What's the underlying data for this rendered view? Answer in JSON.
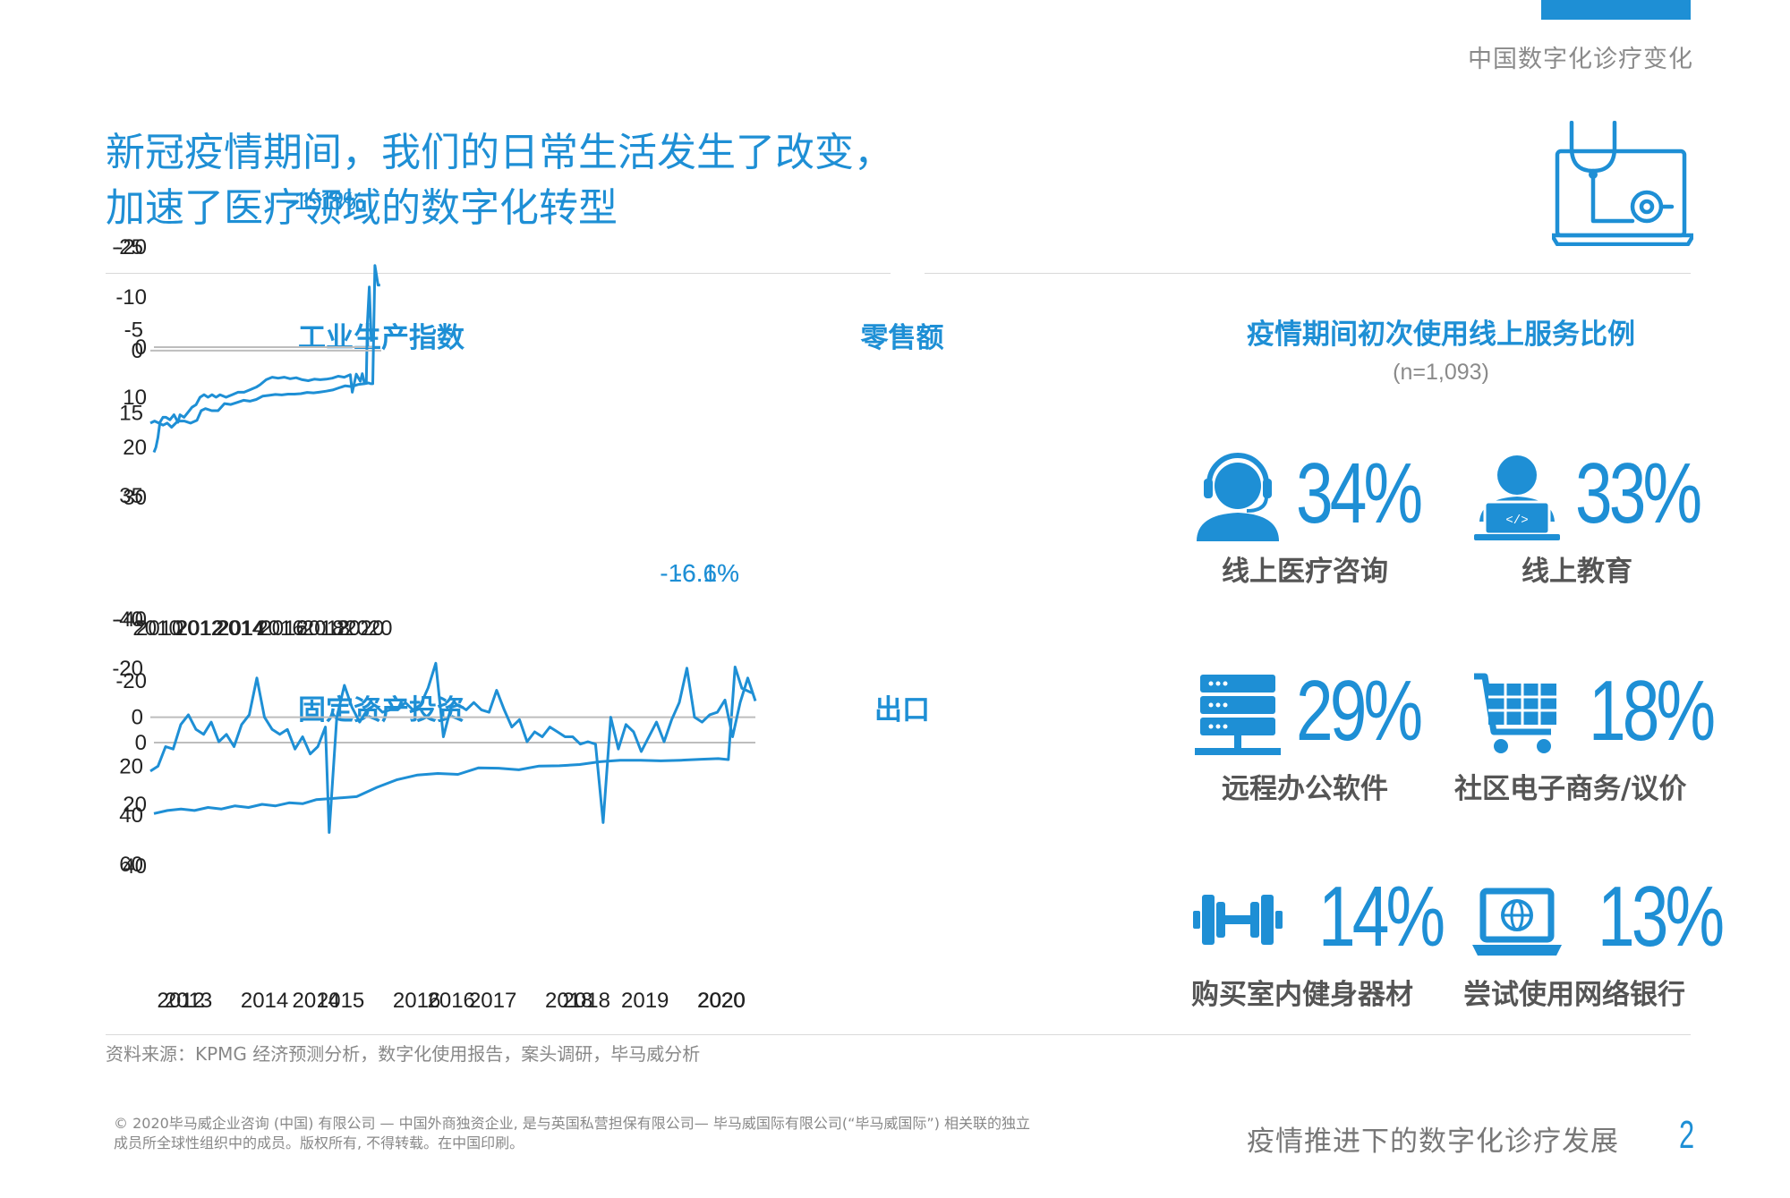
{
  "header": {
    "section_label": "中国数字化诊疗变化"
  },
  "title": {
    "line1": "新冠疫情期间，我们的日常生活发生了改变，",
    "line2": "加速了医疗领域的数字化转型"
  },
  "colors": {
    "accent": "#1e8fd5",
    "text": "#444444",
    "muted": "#888888",
    "zero_line": "#bdbdbd"
  },
  "chart_data": [
    {
      "type": "line",
      "title": "工业生产指数",
      "ylim": [
        -20,
        30
      ],
      "y_ticks": [
        "30",
        "20",
        "10",
        "0",
        "-10",
        "-20"
      ],
      "y_tick_values": [
        30,
        20,
        10,
        0,
        -10,
        -20
      ],
      "x_ticks": [
        "2010",
        "2012",
        "2014",
        "2016",
        "2018",
        "2020"
      ],
      "x_tick_values": [
        2010,
        2012,
        2014,
        2016,
        2018,
        2020
      ],
      "xlim": [
        2009.7,
        2020.6
      ],
      "series": [
        {
          "name": "工业生产指数",
          "x": [
            2009.7,
            2009.8,
            2009.9,
            2010.0,
            2010.15,
            2010.3,
            2010.5,
            2010.7,
            2010.9,
            2011.0,
            2011.2,
            2011.4,
            2011.6,
            2011.8,
            2012.0,
            2012.2,
            2012.4,
            2012.6,
            2012.8,
            2013.0,
            2013.3,
            2013.6,
            2013.9,
            2014.2,
            2014.5,
            2014.8,
            2015.0,
            2015.3,
            2015.6,
            2015.9,
            2016.2,
            2016.5,
            2016.8,
            2017.1,
            2017.4,
            2017.7,
            2018.0,
            2018.3,
            2018.6,
            2018.9,
            2019.2,
            2019.5,
            2019.6,
            2019.8,
            2020.0,
            2020.1,
            2020.2,
            2020.3,
            2020.35,
            2020.45,
            2020.55
          ],
          "y": [
            21,
            20,
            18,
            15,
            14,
            14,
            14.5,
            13.5,
            15,
            13.5,
            14,
            13,
            12,
            11.5,
            10,
            9.5,
            10,
            9.5,
            10,
            9.5,
            10,
            9.5,
            9,
            9,
            8.5,
            8,
            7.5,
            6.5,
            6,
            6.2,
            6,
            6.3,
            6.1,
            6.5,
            6.7,
            6.4,
            6.5,
            6.4,
            6.2,
            5.8,
            6,
            5.5,
            9,
            5.4,
            6.8,
            5.3,
            7,
            6.9,
            -4.5,
            -12,
            -1.1
          ]
        }
      ],
      "callout": "-1.1%"
    },
    {
      "type": "line",
      "title": "零售额",
      "ylim": [
        -25,
        35
      ],
      "y_ticks": [
        "35",
        "15",
        "0",
        "-5",
        "-25"
      ],
      "y_tick_values": [
        35,
        15,
        0,
        -5,
        -25
      ],
      "x_ticks": [
        "2010",
        "2012",
        "2014",
        "2016",
        "2018",
        "2020"
      ],
      "x_tick_values": [
        2010,
        2012,
        2014,
        2016,
        2018,
        2020
      ],
      "xlim": [
        2009.7,
        2020.6
      ],
      "series": [
        {
          "name": "零售额",
          "x": [
            2009.7,
            2009.9,
            2010.1,
            2010.3,
            2010.5,
            2010.7,
            2011.0,
            2011.3,
            2011.6,
            2011.9,
            2012.1,
            2012.3,
            2012.6,
            2012.9,
            2013.2,
            2013.5,
            2013.8,
            2014.1,
            2014.4,
            2014.7,
            2015.0,
            2015.3,
            2015.6,
            2015.9,
            2016.2,
            2016.5,
            2016.8,
            2017.1,
            2017.4,
            2017.7,
            2018.0,
            2018.3,
            2018.6,
            2018.9,
            2019.2,
            2019.5,
            2019.8,
            2020.0,
            2020.1,
            2020.2,
            2020.3,
            2020.45,
            2020.55
          ],
          "y": [
            17.5,
            17,
            17.5,
            18,
            17.5,
            18.5,
            17,
            17,
            17.5,
            16.8,
            14.5,
            14,
            14.5,
            14.5,
            12.8,
            13,
            12.5,
            12,
            12.2,
            11.8,
            11,
            10.8,
            10.6,
            10.7,
            10.5,
            10.5,
            10.4,
            10.1,
            10.2,
            10.0,
            9.8,
            9.5,
            9.0,
            8.5,
            8.7,
            8.2,
            8.0,
            7.8,
            8.0,
            8.0,
            -20.5,
            -15.8,
            -15.8
          ]
        }
      ],
      "callout": "-15.8%"
    },
    {
      "type": "line",
      "title": "固定资产投资",
      "ylim": [
        -40,
        40
      ],
      "y_ticks": [
        "40",
        "20",
        "0",
        "-20",
        "-40"
      ],
      "y_tick_values": [
        40,
        20,
        0,
        -20,
        -40
      ],
      "x_ticks": [
        "2012",
        "2014",
        "2016",
        "2018",
        "2020"
      ],
      "x_tick_values": [
        2012,
        2014,
        2016,
        2018,
        2020
      ],
      "xlim": [
        2011.6,
        2020.5
      ],
      "series": [
        {
          "name": "固定资产投资",
          "x": [
            2011.6,
            2011.8,
            2012.0,
            2012.2,
            2012.4,
            2012.6,
            2012.8,
            2013.0,
            2013.2,
            2013.4,
            2013.6,
            2013.8,
            2014.0,
            2014.3,
            2014.6,
            2014.9,
            2015.2,
            2015.5,
            2015.8,
            2016.1,
            2016.4,
            2016.7,
            2017.0,
            2017.3,
            2017.6,
            2017.9,
            2018.2,
            2018.5,
            2018.8,
            2019.1,
            2019.4,
            2019.7,
            2019.95,
            2020.1,
            2020.2,
            2020.3,
            2020.45
          ],
          "y": [
            23,
            22,
            21.5,
            22,
            21,
            21.5,
            20.5,
            21,
            20,
            20.5,
            19.5,
            19.8,
            18.5,
            18,
            17.5,
            14.5,
            12,
            10.5,
            10,
            10.3,
            8.2,
            8.3,
            8.8,
            7.6,
            7.5,
            7.1,
            6.2,
            5.7,
            5.7,
            5.9,
            5.7,
            5.4,
            5.2,
            5.5,
            -24.5,
            -17.6,
            -16.1
          ]
        }
      ],
      "callout": "-16.1%"
    },
    {
      "type": "line",
      "title": "出口",
      "ylim": [
        -40,
        60
      ],
      "y_ticks": [
        "60",
        "40",
        "20",
        "0",
        "-20",
        "-40"
      ],
      "y_tick_values": [
        60,
        40,
        20,
        0,
        -20,
        -40
      ],
      "x_ticks": [
        "2013",
        "2014",
        "2015",
        "2016",
        "2017",
        "2018",
        "2019",
        "2020"
      ],
      "x_tick_values": [
        2013,
        2014,
        2015,
        2016,
        2017,
        2018,
        2019,
        2020
      ],
      "xlim": [
        2012.5,
        2020.45
      ],
      "series": [
        {
          "name": "出口",
          "x": [
            2012.5,
            2012.6,
            2012.7,
            2012.8,
            2012.9,
            2013.0,
            2013.1,
            2013.2,
            2013.3,
            2013.4,
            2013.5,
            2013.6,
            2013.7,
            2013.8,
            2013.9,
            2014.0,
            2014.1,
            2014.2,
            2014.3,
            2014.4,
            2014.5,
            2014.6,
            2014.7,
            2014.8,
            2014.85,
            2014.95,
            2015.05,
            2015.15,
            2015.25,
            2015.35,
            2015.45,
            2015.55,
            2015.65,
            2015.75,
            2015.85,
            2015.95,
            2016.05,
            2016.15,
            2016.25,
            2016.35,
            2016.45,
            2016.55,
            2016.65,
            2016.75,
            2016.85,
            2016.95,
            2017.05,
            2017.15,
            2017.25,
            2017.35,
            2017.45,
            2017.55,
            2017.65,
            2017.75,
            2017.85,
            2017.95,
            2018.05,
            2018.15,
            2018.25,
            2018.35,
            2018.45,
            2018.55,
            2018.65,
            2018.75,
            2018.85,
            2018.95,
            2019.05,
            2019.15,
            2019.25,
            2019.35,
            2019.45,
            2019.55,
            2019.65,
            2019.75,
            2019.85,
            2019.95,
            2020.05,
            2020.15,
            2020.25,
            2020.35,
            2020.45
          ],
          "y": [
            22,
            20,
            12,
            13,
            3,
            -1,
            5,
            7,
            2,
            10,
            7,
            12,
            3,
            -1,
            -16,
            0,
            5,
            7,
            5,
            13,
            8,
            15,
            12,
            4,
            47,
            0,
            -13,
            -4,
            2,
            -3,
            -5,
            -2,
            -3,
            -3,
            -6,
            -3,
            -5,
            -12,
            -22,
            8,
            -4,
            -5,
            -3,
            -6,
            -3,
            -2,
            -11,
            -3,
            4,
            1,
            10,
            6,
            8,
            4,
            6,
            8,
            8,
            11,
            10,
            11,
            43,
            0,
            13,
            3,
            6,
            14,
            8,
            2,
            10,
            1,
            -6,
            -20,
            0,
            2,
            -1,
            -2,
            -7,
            8,
            -6,
            -16,
            -6.6
          ]
        }
      ],
      "callout": "-6.6%"
    }
  ],
  "stats": {
    "title": "疫情期间初次使用线上服务比例",
    "subtitle": "(n=1,093)",
    "items": [
      {
        "icon": "headset-user-icon",
        "pct": "34%",
        "label": "线上医疗咨询"
      },
      {
        "icon": "laptop-user-icon",
        "pct": "33%",
        "label": "线上教育"
      },
      {
        "icon": "server-icon",
        "pct": "29%",
        "label": "远程办公软件"
      },
      {
        "icon": "shopping-cart-icon",
        "pct": "18%",
        "label": "社区电子商务/议价"
      },
      {
        "icon": "dumbbell-icon",
        "pct": "14%",
        "label": "购买室内健身器材"
      },
      {
        "icon": "laptop-globe-icon",
        "pct": "13%",
        "label": "尝试使用网络银行"
      }
    ]
  },
  "source": "资料来源：KPMG 经济预测分析，数字化使用报告，案头调研，毕马威分析",
  "footer": {
    "copyright_line1": "© 2020毕马威企业咨询 (中国) 有限公司 — 中国外商独资企业, 是与英国私营担保有限公司— 毕马威国际有限公司(“毕马威国际”) 相关联的独立",
    "copyright_line2": "成员所全球性组织中的成员。版权所有, 不得转载。在中国印刷。",
    "title": "疫情推进下的数字化诊疗发展",
    "page_number": "2"
  }
}
